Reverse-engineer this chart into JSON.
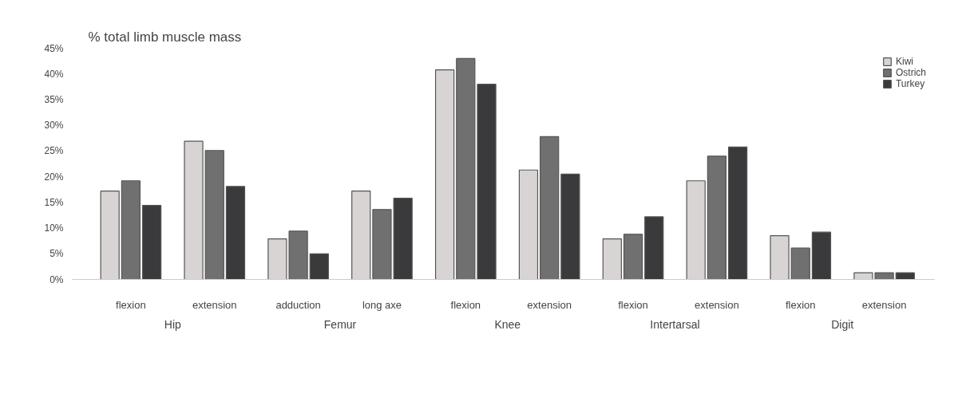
{
  "chart_data": {
    "type": "bar",
    "title": "% total limb muscle mass",
    "categories": [
      "flexion",
      "extension",
      "adduction",
      "long axe",
      "flexion",
      "extension",
      "flexion",
      "extension",
      "flexion",
      "extension"
    ],
    "series": [
      {
        "name": "Kiwi",
        "color": "#d9d4d4",
        "values": [
          17.2,
          26.9,
          7.9,
          17.2,
          40.8,
          21.3,
          7.9,
          19.2,
          8.5,
          1.3
        ]
      },
      {
        "name": "Ostrich",
        "color": "#707070",
        "values": [
          19.2,
          25.1,
          9.4,
          13.6,
          43.0,
          27.8,
          8.8,
          24.0,
          6.1,
          1.3
        ]
      },
      {
        "name": "Turkey",
        "color": "#3a3a3c",
        "values": [
          14.4,
          18.1,
          5.0,
          15.8,
          38.0,
          20.5,
          12.2,
          25.8,
          9.2,
          1.3
        ]
      }
    ],
    "annotations": [
      "Hip",
      "Femur",
      "Knee",
      "Intertarsal",
      "Digit"
    ],
    "ylim": [
      0,
      45
    ],
    "yticks": [
      {
        "value": 0,
        "label": "0%"
      },
      {
        "value": 5,
        "label": "5%"
      },
      {
        "value": 10,
        "label": "10%"
      },
      {
        "value": 15,
        "label": "15%"
      },
      {
        "value": 20,
        "label": "20%"
      },
      {
        "value": 25,
        "label": "25%"
      },
      {
        "value": 30,
        "label": "30%"
      },
      {
        "value": 35,
        "label": "35%"
      },
      {
        "value": 40,
        "label": "40%"
      },
      {
        "value": 45,
        "label": "45%"
      }
    ],
    "grid": false,
    "legend": "top right"
  }
}
